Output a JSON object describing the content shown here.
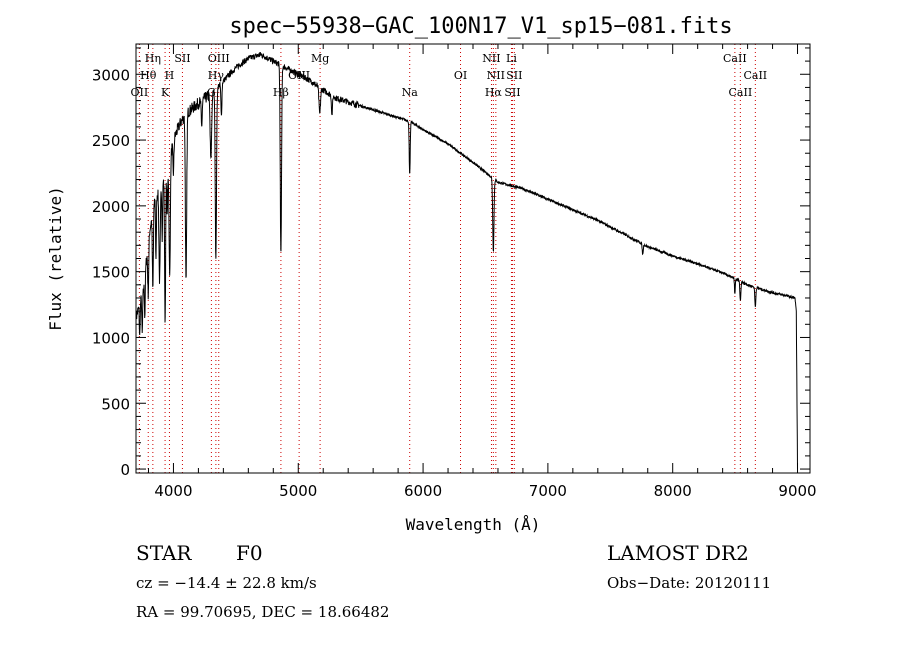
{
  "chart_data": {
    "type": "line",
    "title": "spec−55938−GAC_100N17_V1_sp15−081.fits",
    "xlabel": "Wavelength (Å)",
    "ylabel": "Flux (relative)",
    "xlim": [
      3700,
      9100
    ],
    "ylim": [
      -30,
      3230
    ],
    "grid": false,
    "legend": "none",
    "line_color": "#000000",
    "marker_color": "#cc0000",
    "xticks": [
      4000,
      5000,
      6000,
      7000,
      8000,
      9000
    ],
    "xtick_labels": [
      "4000",
      "5000",
      "6000",
      "7000",
      "8000",
      "9000"
    ],
    "yticks": [
      0,
      500,
      1000,
      1500,
      2000,
      2500,
      3000
    ],
    "ytick_labels": [
      "0",
      "500",
      "1000",
      "1500",
      "2000",
      "2500",
      "3000"
    ],
    "continuum": {
      "x": [
        3700,
        3760,
        3800,
        3850,
        3900,
        3950,
        4000,
        4050,
        4100,
        4200,
        4300,
        4400,
        4500,
        4600,
        4700,
        4800,
        4900,
        5000,
        5100,
        5200,
        5300,
        5400,
        5500,
        5600,
        5700,
        5800,
        5900,
        6000,
        6200,
        6400,
        6600,
        6800,
        7000,
        7200,
        7400,
        7600,
        7800,
        8000,
        8200,
        8400,
        8600,
        8800,
        8900,
        8980,
        8990,
        8995,
        9000
      ],
      "y": [
        1150,
        1350,
        1750,
        2050,
        2150,
        2250,
        2500,
        2620,
        2700,
        2780,
        2850,
        2950,
        3050,
        3120,
        3150,
        3100,
        3050,
        3000,
        2950,
        2880,
        2820,
        2790,
        2760,
        2730,
        2700,
        2670,
        2640,
        2580,
        2470,
        2330,
        2180,
        2130,
        2050,
        1970,
        1890,
        1790,
        1690,
        1620,
        1560,
        1490,
        1400,
        1340,
        1320,
        1300,
        1200,
        600,
        0
      ]
    },
    "absorption_lines": {
      "x": [
        3730,
        3750,
        3771,
        3798,
        3835,
        3860,
        3889,
        3910,
        3933,
        3950,
        3970,
        4000,
        4101,
        4226,
        4300,
        4340,
        4384,
        4861,
        5172,
        5270,
        5893,
        6563,
        7760,
        8498,
        8542,
        8662
      ],
      "depth": [
        250,
        300,
        300,
        400,
        600,
        500,
        700,
        400,
        1100,
        350,
        900,
        250,
        1300,
        200,
        500,
        1300,
        250,
        1450,
        200,
        150,
        400,
        550,
        80,
        120,
        150,
        150
      ],
      "width": [
        3,
        3,
        3,
        4,
        4,
        3,
        5,
        3,
        4,
        3,
        5,
        4,
        5,
        4,
        6,
        5,
        4,
        5,
        6,
        4,
        4,
        5,
        4,
        3,
        4,
        4
      ]
    },
    "line_markers": [
      {
        "name": "OII",
        "x": 3727,
        "row": 3
      },
      {
        "name": "Hθ",
        "x": 3798,
        "row": 2
      },
      {
        "name": "Hη",
        "x": 3835,
        "row": 1
      },
      {
        "name": "K",
        "x": 3933,
        "row": 3
      },
      {
        "name": "H",
        "x": 3968,
        "row": 2
      },
      {
        "name": "SII",
        "x": 4072,
        "row": 1
      },
      {
        "name": "G",
        "x": 4304,
        "row": 3
      },
      {
        "name": "Hγ",
        "x": 4340,
        "row": 2
      },
      {
        "name": "OIII",
        "x": 4363,
        "row": 1
      },
      {
        "name": "Hβ",
        "x": 4861,
        "row": 3
      },
      {
        "name": "OIII",
        "x": 5007,
        "row": 2
      },
      {
        "name": "Mg",
        "x": 5175,
        "row": 1
      },
      {
        "name": "Na",
        "x": 5893,
        "row": 3
      },
      {
        "name": "OI",
        "x": 6300,
        "row": 2
      },
      {
        "name": "NII",
        "x": 6548,
        "row": 1
      },
      {
        "name": "Hα",
        "x": 6563,
        "row": 3
      },
      {
        "name": "NII",
        "x": 6583,
        "row": 2
      },
      {
        "name": "Li",
        "x": 6708,
        "row": 1
      },
      {
        "name": "SII",
        "x": 6716,
        "row": 3
      },
      {
        "name": "SII",
        "x": 6731,
        "row": 2
      },
      {
        "name": "CaII",
        "x": 8498,
        "row": 1
      },
      {
        "name": "CaII",
        "x": 8542,
        "row": 3
      },
      {
        "name": "CaII",
        "x": 8662,
        "row": 2
      }
    ]
  },
  "info": {
    "class": "STAR",
    "subclass": "F0",
    "survey": "LAMOST DR2",
    "cz": "cz = −14.4 ± 22.8 km/s",
    "obs_date": "Obs−Date: 20120111",
    "coords": "RA =  99.70695, DEC =  18.66482"
  }
}
